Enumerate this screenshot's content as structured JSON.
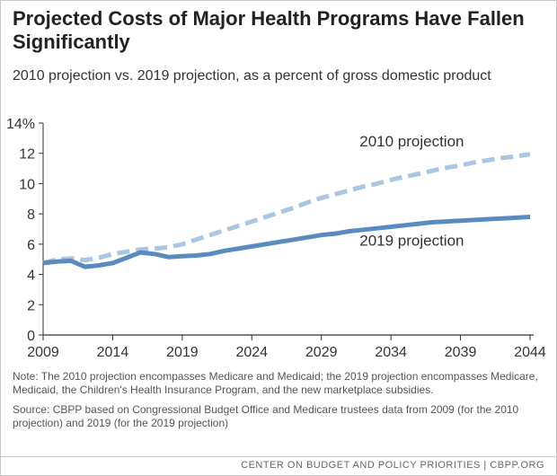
{
  "chart_data": {
    "type": "line",
    "title": "Projected Costs of Major Health Programs Have Fallen Significantly",
    "subtitle": "2010 projection vs. 2019 projection, as a percent of gross domestic product",
    "xlabel": "",
    "ylabel": "",
    "xlim": [
      2009,
      2044
    ],
    "ylim": [
      0,
      14
    ],
    "x_ticks": [
      "2009",
      "2014",
      "2019",
      "2024",
      "2029",
      "2034",
      "2039",
      "2044"
    ],
    "y_ticks": [
      "0",
      "2",
      "4",
      "6",
      "8",
      "10",
      "12",
      "14%"
    ],
    "grid": false,
    "series": [
      {
        "name": "2010 projection",
        "style": "dashed",
        "color": "#a9c6e3",
        "x": [
          2009,
          2010,
          2011,
          2012,
          2013,
          2014,
          2015,
          2016,
          2017,
          2018,
          2019,
          2020,
          2021,
          2022,
          2023,
          2024,
          2025,
          2026,
          2027,
          2028,
          2029,
          2030,
          2031,
          2032,
          2033,
          2034,
          2035,
          2036,
          2037,
          2038,
          2039,
          2040,
          2041,
          2042,
          2043,
          2044
        ],
        "values": [
          4.75,
          5.0,
          5.05,
          4.95,
          5.1,
          5.35,
          5.5,
          5.65,
          5.7,
          5.8,
          6.0,
          6.3,
          6.6,
          6.9,
          7.2,
          7.5,
          7.8,
          8.1,
          8.4,
          8.75,
          9.05,
          9.3,
          9.55,
          9.8,
          10.0,
          10.25,
          10.45,
          10.65,
          10.85,
          11.05,
          11.2,
          11.4,
          11.55,
          11.7,
          11.8,
          11.95
        ]
      },
      {
        "name": "2019 projection",
        "style": "solid",
        "color": "#5a8bc0",
        "x": [
          2009,
          2010,
          2011,
          2012,
          2013,
          2014,
          2015,
          2016,
          2017,
          2018,
          2019,
          2020,
          2021,
          2022,
          2023,
          2024,
          2025,
          2026,
          2027,
          2028,
          2029,
          2030,
          2031,
          2032,
          2033,
          2034,
          2035,
          2036,
          2037,
          2038,
          2039,
          2040,
          2041,
          2042,
          2043,
          2044
        ],
        "values": [
          4.75,
          4.85,
          4.9,
          4.5,
          4.6,
          4.75,
          5.1,
          5.45,
          5.35,
          5.15,
          5.2,
          5.25,
          5.35,
          5.55,
          5.7,
          5.85,
          6.0,
          6.15,
          6.3,
          6.45,
          6.6,
          6.7,
          6.85,
          6.95,
          7.05,
          7.15,
          7.25,
          7.35,
          7.45,
          7.5,
          7.55,
          7.6,
          7.65,
          7.7,
          7.75,
          7.8
        ]
      }
    ]
  },
  "notes": {
    "note": "Note: The 2010 projection encompasses Medicare and Medicaid; the 2019 projection encompasses Medicare, Medicaid, the Children's Health Insurance Program, and the new marketplace subsidies.",
    "source": "Source:  CBPP based on Congressional Budget Office and Medicare trustees data from 2009 (for the 2010 projection) and 2019 (for the 2019 projection)"
  },
  "footer": "CENTER ON BUDGET AND POLICY PRIORITIES | CBPP.ORG"
}
